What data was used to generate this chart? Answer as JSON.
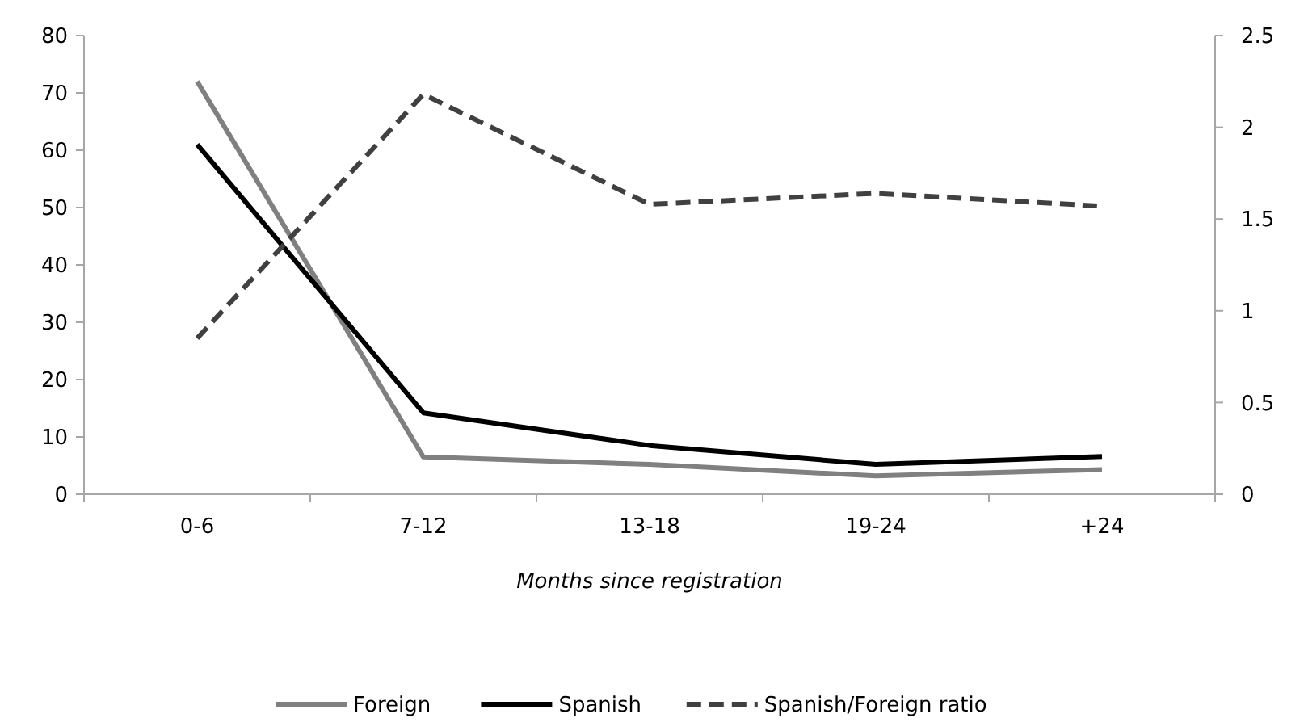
{
  "chart_data": {
    "type": "line",
    "xlabel": "Months since registration",
    "categories": [
      "0-6",
      "7-12",
      "13-18",
      "19-24",
      "+24"
    ],
    "ylim": [
      0,
      80
    ],
    "yticks": [
      0,
      10,
      20,
      30,
      40,
      50,
      60,
      70,
      80
    ],
    "y2lim": [
      0,
      2.5
    ],
    "y2ticks": [
      0,
      0.5,
      1,
      1.5,
      2,
      2.5
    ],
    "legend": "bottom",
    "grid": false,
    "series": [
      {
        "name": "Foreign",
        "color": "#808080",
        "values": [
          72,
          6.5,
          5.2,
          3.2,
          4.3
        ],
        "line_style": "solid"
      },
      {
        "name": "Spanish",
        "color": "#000000",
        "values": [
          61,
          14.2,
          8.5,
          5.2,
          6.6
        ],
        "line_style": "solid"
      },
      {
        "name": "Spanish/Foreign ratio",
        "color": "#404040",
        "values": [
          0.85,
          2.18,
          1.58,
          1.64,
          1.57
        ],
        "axis": "y2",
        "line_style": "dashed"
      }
    ]
  }
}
